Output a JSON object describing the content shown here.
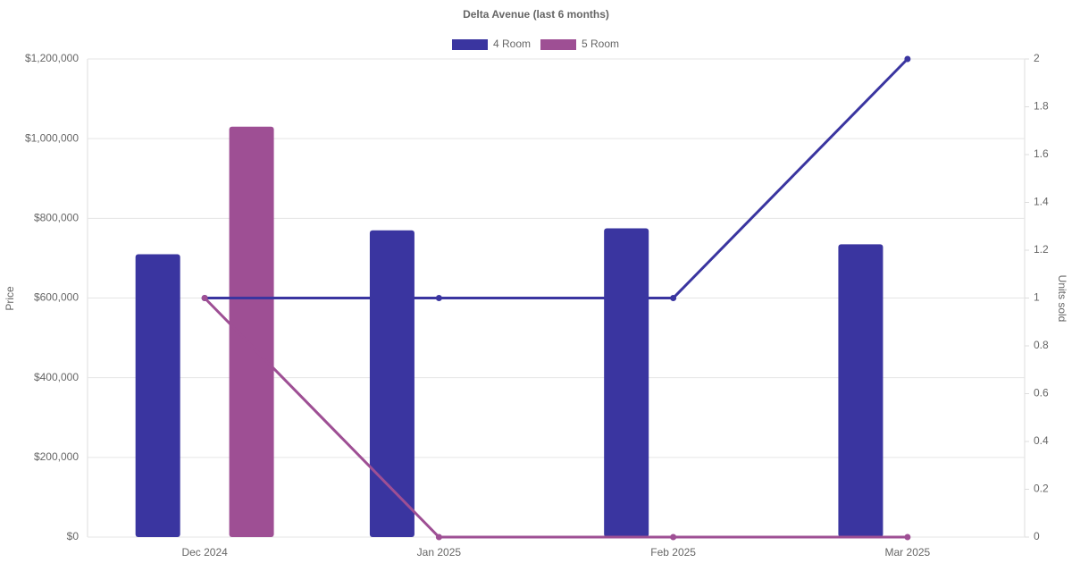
{
  "chart_data": {
    "type": "bar_line",
    "title": "Delta Avenue (last 6 months)",
    "y_label": "Price",
    "y2_label": "Units sold",
    "categories": [
      "Dec 2024",
      "Jan 2025",
      "Feb 2025",
      "Mar 2025"
    ],
    "series": [
      {
        "name": "4 Room",
        "color": "#3a35a0",
        "values": [
          710000,
          770000,
          775000,
          735000
        ],
        "y2_values": [
          1,
          1,
          1,
          2
        ]
      },
      {
        "name": "5 Room",
        "color": "#9e4f94",
        "values": [
          1030000,
          null,
          null,
          null
        ],
        "y2_values": [
          1,
          0,
          0,
          0
        ]
      }
    ],
    "ylim": [
      0,
      1200000
    ],
    "yticks": [
      {
        "value": 0,
        "label": "$0"
      },
      {
        "value": 200000,
        "label": "$200,000"
      },
      {
        "value": 400000,
        "label": "$400,000"
      },
      {
        "value": 600000,
        "label": "$600,000"
      },
      {
        "value": 800000,
        "label": "$800,000"
      },
      {
        "value": 1000000,
        "label": "$1,000,000"
      },
      {
        "value": 1200000,
        "label": "$1,200,000"
      }
    ],
    "y2lim": [
      0,
      2
    ],
    "y2ticks": [
      0,
      0.2,
      0.4,
      0.6,
      0.8,
      1,
      1.2,
      1.4,
      1.6,
      1.8,
      2
    ],
    "grid": true,
    "legend": "top"
  }
}
